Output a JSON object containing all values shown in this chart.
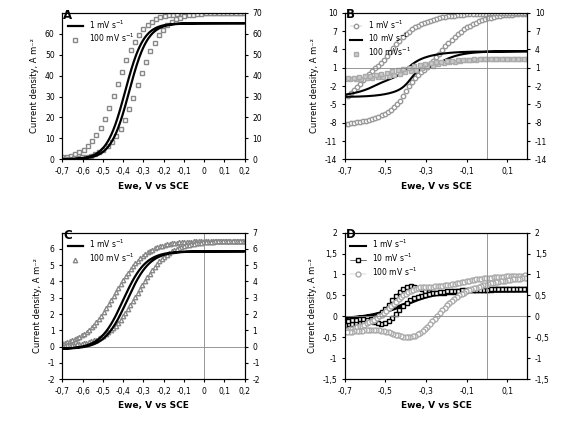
{
  "fig_width": 5.67,
  "fig_height": 4.26,
  "dpi": 100,
  "background": "white",
  "panels": {
    "A": {
      "label": "A",
      "xlabel": "Ewe, V vs SCE",
      "ylabel": "Current density, A m⁻²",
      "xlim": [
        -0.7,
        0.2
      ],
      "ylim": [
        0,
        70
      ],
      "yticks_left": [
        0,
        10,
        20,
        30,
        40,
        50,
        60
      ],
      "yticks_right": [
        0,
        10,
        20,
        30,
        40,
        50,
        60,
        70
      ],
      "ytick_labels_left": [
        "0",
        "10",
        "20",
        "30",
        "40",
        "50",
        "60"
      ],
      "ytick_labels_right": [
        "0",
        "10",
        "20",
        "30",
        "40",
        "50",
        "60",
        "70"
      ],
      "xticks": [
        -0.7,
        -0.6,
        -0.5,
        -0.4,
        -0.3,
        -0.2,
        -0.1,
        0,
        0.1,
        0.2
      ],
      "xtick_labels": [
        "-0,7",
        "-0,6",
        "-0,5",
        "-0,4",
        "-0,3",
        "-0,2",
        "-0,1",
        "0",
        "0,1",
        "0,2"
      ],
      "hline": 0,
      "vline": null
    },
    "B": {
      "label": "B",
      "xlabel": "Ewe, V vs SCE",
      "ylabel": "Current density, A m⁻²",
      "xlim": [
        -0.7,
        0.2
      ],
      "ylim": [
        -14,
        10
      ],
      "yticks_left": [
        -14,
        -11,
        -8,
        -5,
        -2,
        1,
        4,
        7,
        10
      ],
      "yticks_right": [
        -14,
        -11,
        -8,
        -5,
        -2,
        1,
        4,
        7,
        10
      ],
      "ytick_labels_left": [
        "-14",
        "-11",
        "-8",
        "-5",
        "-2",
        "1",
        "4",
        "7",
        "10"
      ],
      "ytick_labels_right": [
        "-14",
        "-11",
        "-8",
        "-5",
        "-2",
        "1",
        "4",
        "7",
        "10"
      ],
      "xticks": [
        -0.7,
        -0.5,
        -0.3,
        -0.1,
        0.1
      ],
      "xtick_labels": [
        "-0,7",
        "-0,5",
        "-0,3",
        "-0,1",
        "0,1"
      ],
      "hline": 1,
      "vline": 0
    },
    "C": {
      "label": "C",
      "xlabel": "Ewe, V vs SCE",
      "ylabel": "Current density, A m⁻²",
      "xlim": [
        -0.7,
        0.2
      ],
      "ylim": [
        -2,
        7
      ],
      "yticks_left": [
        -2,
        -1,
        0,
        1,
        2,
        3,
        4,
        5,
        6
      ],
      "yticks_right": [
        -2,
        -1,
        0,
        1,
        2,
        3,
        4,
        5,
        6,
        7
      ],
      "ytick_labels_left": [
        "-2",
        "-1",
        "0",
        "1",
        "2",
        "3",
        "4",
        "5",
        "6"
      ],
      "ytick_labels_right": [
        "-2",
        "-1",
        "0",
        "1",
        "2",
        "3",
        "4",
        "5",
        "6",
        "7"
      ],
      "xticks": [
        -0.7,
        -0.6,
        -0.5,
        -0.4,
        -0.3,
        -0.2,
        -0.1,
        0,
        0.1,
        0.2
      ],
      "xtick_labels": [
        "-0,7",
        "-0,6",
        "-0,5",
        "-0,4",
        "-0,3",
        "-0,2",
        "-0,1",
        "0",
        "0,1",
        "0,2"
      ],
      "hline": 0,
      "vline": 0
    },
    "D": {
      "label": "D",
      "xlabel": "Ewe, V vs SCE",
      "ylabel": "Current density, A m⁻²",
      "xlim": [
        -0.7,
        0.2
      ],
      "ylim": [
        -1.5,
        2.0
      ],
      "yticks_left": [
        -1.5,
        -1.0,
        -0.5,
        0.0,
        0.5,
        1.0,
        1.5,
        2.0
      ],
      "yticks_right": [
        -1.5,
        -1.0,
        -0.5,
        0.0,
        0.5,
        1.0,
        1.5,
        2.0
      ],
      "ytick_labels_left": [
        "-1,5",
        "-1",
        "-0,5",
        "0",
        "0,5",
        "1",
        "1,5",
        "2"
      ],
      "ytick_labels_right": [
        "-1,5",
        "-1",
        "-0,5",
        "0",
        "0,5",
        "1",
        "1,5",
        "2"
      ],
      "xticks": [
        -0.7,
        -0.5,
        -0.3,
        -0.1,
        0.1
      ],
      "xtick_labels": [
        "-0,7",
        "-0,5",
        "-0,3",
        "-0,1",
        "0,1"
      ],
      "hline": 0,
      "vline": 0
    }
  }
}
